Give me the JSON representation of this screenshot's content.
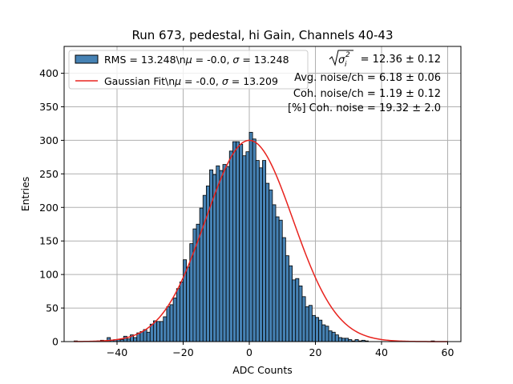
{
  "chart_data": {
    "type": "bar",
    "title": "Run 673, pedestal, hi Gain, Channels 40-43",
    "xlabel": "ADC Counts",
    "ylabel": "Entries",
    "xlim": [
      -56,
      64
    ],
    "ylim": [
      0,
      440
    ],
    "grid": true,
    "xticks": [
      -40,
      -20,
      0,
      20,
      40,
      60
    ],
    "yticks": [
      0,
      50,
      100,
      150,
      200,
      250,
      300,
      350,
      400
    ],
    "bin_width": 1,
    "bin_start": -53,
    "values": [
      1,
      0,
      0,
      0,
      0,
      0,
      0,
      1,
      2,
      1,
      6,
      2,
      3,
      3,
      3,
      8,
      4,
      10,
      6,
      13,
      15,
      18,
      14,
      26,
      31,
      30,
      30,
      37,
      52,
      55,
      65,
      79,
      89,
      122,
      111,
      146,
      168,
      175,
      199,
      218,
      232,
      256,
      249,
      262,
      255,
      264,
      261,
      284,
      298,
      298,
      294,
      277,
      283,
      312,
      302,
      270,
      259,
      270,
      236,
      226,
      204,
      186,
      181,
      155,
      128,
      113,
      92,
      94,
      83,
      67,
      52,
      54,
      39,
      36,
      32,
      25,
      23,
      16,
      14,
      10,
      6,
      5,
      5,
      3,
      1,
      3,
      1,
      2,
      1,
      0,
      0,
      0,
      0,
      0,
      0,
      0,
      0,
      0,
      0,
      0,
      0,
      0,
      0,
      0,
      0,
      0,
      0,
      0,
      1
    ],
    "series": [
      {
        "name": "RMS = 13.248\\n$\\mu$ = -0.0, $\\sigma$ = 13.248",
        "kind": "histogram",
        "color": "#4682b4"
      },
      {
        "name": "Gaussian Fit\\n$\\mu$ = -0.0, $\\sigma$ = 13.209",
        "kind": "line",
        "color": "#e8231e",
        "mu": -0.0,
        "sigma": 13.209,
        "amplitude": 300
      }
    ],
    "legend_position": "upper-left"
  },
  "legend": {
    "hist_label_pre": "RMS = 13.248\\n",
    "hist_label_mu": "μ",
    "hist_label_mid": " = -0.0, ",
    "hist_label_sigma": "σ",
    "hist_label_post": " = 13.248",
    "fit_label_pre": "Gaussian Fit\\n",
    "fit_label_mu": "μ",
    "fit_label_mid": " = -0.0, ",
    "fit_label_sigma": "σ",
    "fit_label_post": " = 13.209"
  },
  "annotations": {
    "sqrt_sigma_value": " = 12.36 ± 0.12",
    "avg_noise": "Avg. noise/ch = 6.18 ± 0.06",
    "coh_noise": "Coh. noise/ch = 1.19 ± 0.12",
    "pct_coh_noise": "[%] Coh. noise = 19.32 ± 2.0"
  },
  "colors": {
    "bar_fill": "#4682b4",
    "bar_edge": "#000000",
    "fit_line": "#e8231e",
    "grid": "#b0b0b0"
  }
}
